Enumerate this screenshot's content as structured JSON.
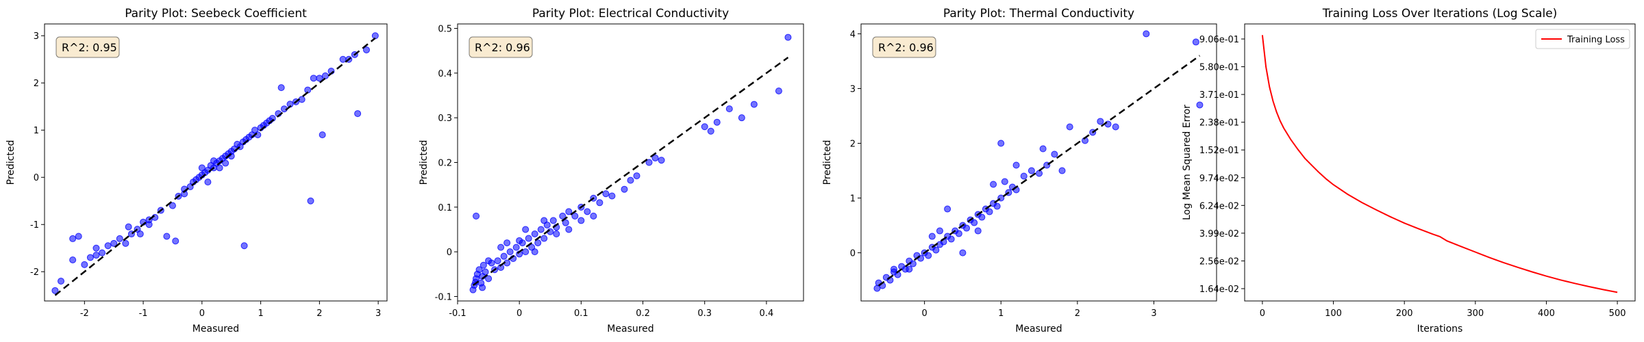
{
  "chart_data": [
    {
      "type": "scatter",
      "title": "Parity Plot: Seebeck Coefficient",
      "xlabel": "Measured",
      "ylabel": "Predicted",
      "annotation": "R^2: 0.95",
      "xlim": [
        -2.68,
        3.15
      ],
      "ylim": [
        -2.62,
        3.25
      ],
      "xticks": [
        -2,
        -1,
        0,
        1,
        2,
        3
      ],
      "yticks": [
        -2,
        -1,
        0,
        1,
        2,
        3
      ],
      "reference_line": [
        -2.5,
        2.95
      ],
      "grid": false,
      "point_color": "#0000ff",
      "line_color": "#000000",
      "series": [
        {
          "values": [
            [
              -2.5,
              -2.4
            ],
            [
              -2.4,
              -2.2
            ],
            [
              -2.2,
              -1.75
            ],
            [
              -2.2,
              -1.3
            ],
            [
              -2.1,
              -1.25
            ],
            [
              -2.0,
              -1.85
            ],
            [
              -1.9,
              -1.7
            ],
            [
              -1.8,
              -1.5
            ],
            [
              -1.8,
              -1.65
            ],
            [
              -1.7,
              -1.6
            ],
            [
              -1.6,
              -1.45
            ],
            [
              -1.5,
              -1.4
            ],
            [
              -1.4,
              -1.3
            ],
            [
              -1.3,
              -1.4
            ],
            [
              -1.25,
              -1.05
            ],
            [
              -1.2,
              -1.2
            ],
            [
              -1.1,
              -1.1
            ],
            [
              -1.05,
              -1.2
            ],
            [
              -1.0,
              -0.95
            ],
            [
              -0.9,
              -0.9
            ],
            [
              -0.8,
              -0.85
            ],
            [
              -0.7,
              -0.7
            ],
            [
              -0.6,
              -1.25
            ],
            [
              -0.5,
              -0.6
            ],
            [
              -0.45,
              -1.35
            ],
            [
              -0.4,
              -0.4
            ],
            [
              -0.3,
              -0.25
            ],
            [
              -0.2,
              -0.2
            ],
            [
              -0.15,
              -0.1
            ],
            [
              -0.1,
              -0.05
            ],
            [
              -0.05,
              0.0
            ],
            [
              0.0,
              0.05
            ],
            [
              0.05,
              0.1
            ],
            [
              0.1,
              0.15
            ],
            [
              0.15,
              0.25
            ],
            [
              0.2,
              0.2
            ],
            [
              0.25,
              0.3
            ],
            [
              0.3,
              0.35
            ],
            [
              0.35,
              0.4
            ],
            [
              0.4,
              0.45
            ],
            [
              0.45,
              0.5
            ],
            [
              0.5,
              0.55
            ],
            [
              0.55,
              0.6
            ],
            [
              0.6,
              0.7
            ],
            [
              0.65,
              0.65
            ],
            [
              0.7,
              0.75
            ],
            [
              0.72,
              -1.45
            ],
            [
              0.75,
              0.8
            ],
            [
              0.8,
              0.85
            ],
            [
              0.85,
              0.9
            ],
            [
              0.9,
              1.0
            ],
            [
              0.95,
              0.9
            ],
            [
              1.0,
              1.05
            ],
            [
              1.05,
              1.1
            ],
            [
              1.1,
              1.15
            ],
            [
              1.2,
              1.25
            ],
            [
              1.3,
              1.35
            ],
            [
              1.35,
              1.9
            ],
            [
              1.4,
              1.45
            ],
            [
              1.5,
              1.55
            ],
            [
              1.6,
              1.6
            ],
            [
              1.7,
              1.65
            ],
            [
              1.8,
              1.85
            ],
            [
              1.85,
              -0.5
            ],
            [
              1.9,
              2.1
            ],
            [
              2.0,
              2.1
            ],
            [
              2.05,
              0.9
            ],
            [
              2.1,
              2.15
            ],
            [
              2.2,
              2.25
            ],
            [
              2.4,
              2.5
            ],
            [
              2.5,
              2.5
            ],
            [
              2.6,
              2.6
            ],
            [
              2.65,
              1.35
            ],
            [
              2.8,
              2.7
            ],
            [
              2.95,
              3.0
            ],
            [
              0.1,
              -0.1
            ],
            [
              0.3,
              0.2
            ],
            [
              -0.3,
              -0.35
            ],
            [
              0.5,
              0.45
            ],
            [
              1.15,
              1.2
            ],
            [
              -0.9,
              -1.0
            ],
            [
              0.0,
              0.2
            ],
            [
              0.2,
              0.35
            ],
            [
              0.4,
              0.3
            ]
          ]
        }
      ]
    },
    {
      "type": "scatter",
      "title": "Parity Plot: Electrical Conductivity",
      "xlabel": "Measured",
      "ylabel": "Predicted",
      "annotation": "R^2: 0.96",
      "xlim": [
        -0.1,
        0.46
      ],
      "ylim": [
        -0.11,
        0.51
      ],
      "xticks": [
        -0.1,
        0.0,
        0.1,
        0.2,
        0.3,
        0.4
      ],
      "yticks": [
        -0.1,
        0.0,
        0.1,
        0.2,
        0.3,
        0.4,
        0.5
      ],
      "reference_line": [
        -0.075,
        0.435
      ],
      "grid": false,
      "point_color": "#0000ff",
      "line_color": "#000000",
      "series": [
        {
          "values": [
            [
              -0.075,
              -0.085
            ],
            [
              -0.073,
              -0.075
            ],
            [
              -0.071,
              -0.068
            ],
            [
              -0.07,
              0.08
            ],
            [
              -0.07,
              -0.06
            ],
            [
              -0.068,
              -0.05
            ],
            [
              -0.065,
              -0.04
            ],
            [
              -0.062,
              -0.07
            ],
            [
              -0.06,
              -0.055
            ],
            [
              -0.058,
              -0.03
            ],
            [
              -0.055,
              -0.045
            ],
            [
              -0.05,
              -0.06
            ],
            [
              -0.045,
              -0.025
            ],
            [
              -0.04,
              -0.04
            ],
            [
              -0.035,
              -0.02
            ],
            [
              -0.03,
              -0.035
            ],
            [
              -0.025,
              -0.01
            ],
            [
              -0.02,
              -0.025
            ],
            [
              -0.015,
              0.0
            ],
            [
              -0.01,
              -0.015
            ],
            [
              -0.005,
              0.01
            ],
            [
              0.0,
              -0.005
            ],
            [
              0.005,
              0.02
            ],
            [
              0.01,
              0.0
            ],
            [
              0.015,
              0.03
            ],
            [
              0.02,
              0.01
            ],
            [
              0.025,
              0.04
            ],
            [
              0.03,
              0.02
            ],
            [
              0.035,
              0.05
            ],
            [
              0.04,
              0.03
            ],
            [
              0.045,
              0.06
            ],
            [
              0.05,
              0.045
            ],
            [
              0.055,
              0.07
            ],
            [
              0.06,
              0.055
            ],
            [
              0.07,
              0.08
            ],
            [
              0.075,
              0.065
            ],
            [
              0.08,
              0.09
            ],
            [
              0.09,
              0.08
            ],
            [
              0.1,
              0.1
            ],
            [
              0.11,
              0.09
            ],
            [
              0.12,
              0.12
            ],
            [
              0.13,
              0.11
            ],
            [
              0.14,
              0.13
            ],
            [
              0.15,
              0.125
            ],
            [
              0.17,
              0.14
            ],
            [
              0.18,
              0.16
            ],
            [
              0.19,
              0.17
            ],
            [
              0.21,
              0.2
            ],
            [
              0.22,
              0.21
            ],
            [
              0.23,
              0.205
            ],
            [
              0.3,
              0.28
            ],
            [
              0.31,
              0.27
            ],
            [
              0.32,
              0.29
            ],
            [
              0.34,
              0.32
            ],
            [
              0.36,
              0.3
            ],
            [
              0.38,
              0.33
            ],
            [
              0.42,
              0.36
            ],
            [
              0.435,
              0.48
            ],
            [
              0.01,
              0.05
            ],
            [
              -0.03,
              0.01
            ],
            [
              0.06,
              0.04
            ],
            [
              -0.05,
              -0.02
            ],
            [
              0.04,
              0.07
            ],
            [
              0.08,
              0.05
            ],
            [
              0.12,
              0.08
            ],
            [
              0.0,
              0.025
            ],
            [
              -0.06,
              -0.08
            ],
            [
              0.025,
              0.0
            ],
            [
              0.1,
              0.07
            ],
            [
              -0.02,
              0.02
            ]
          ]
        }
      ]
    },
    {
      "type": "scatter",
      "title": "Parity Plot: Thermal Conductivity",
      "xlabel": "Measured",
      "ylabel": "Predicted",
      "annotation": "R^2: 0.96",
      "xlim": [
        -0.83,
        3.82
      ],
      "ylim": [
        -0.88,
        4.18
      ],
      "xticks": [
        0,
        1,
        2,
        3
      ],
      "yticks": [
        0,
        1,
        2,
        3,
        4
      ],
      "reference_line": [
        -0.6,
        3.6
      ],
      "grid": false,
      "point_color": "#0000ff",
      "line_color": "#000000",
      "series": [
        {
          "values": [
            [
              -0.62,
              -0.65
            ],
            [
              -0.6,
              -0.55
            ],
            [
              -0.55,
              -0.6
            ],
            [
              -0.5,
              -0.45
            ],
            [
              -0.45,
              -0.5
            ],
            [
              -0.4,
              -0.35
            ],
            [
              -0.35,
              -0.4
            ],
            [
              -0.3,
              -0.25
            ],
            [
              -0.25,
              -0.3
            ],
            [
              -0.2,
              -0.15
            ],
            [
              -0.15,
              -0.2
            ],
            [
              -0.1,
              -0.05
            ],
            [
              -0.05,
              -0.1
            ],
            [
              0.0,
              0.0
            ],
            [
              0.05,
              -0.05
            ],
            [
              0.1,
              0.1
            ],
            [
              0.15,
              0.05
            ],
            [
              0.2,
              0.15
            ],
            [
              0.25,
              0.2
            ],
            [
              0.3,
              0.3
            ],
            [
              0.35,
              0.25
            ],
            [
              0.4,
              0.4
            ],
            [
              0.45,
              0.35
            ],
            [
              0.5,
              0.5
            ],
            [
              0.55,
              0.45
            ],
            [
              0.6,
              0.6
            ],
            [
              0.65,
              0.55
            ],
            [
              0.7,
              0.7
            ],
            [
              0.75,
              0.65
            ],
            [
              0.8,
              0.8
            ],
            [
              0.85,
              0.75
            ],
            [
              0.9,
              0.9
            ],
            [
              0.95,
              0.85
            ],
            [
              1.0,
              1.0
            ],
            [
              1.05,
              1.3
            ],
            [
              1.1,
              1.1
            ],
            [
              1.15,
              1.2
            ],
            [
              1.2,
              1.15
            ],
            [
              1.3,
              1.4
            ],
            [
              1.4,
              1.5
            ],
            [
              1.5,
              1.45
            ],
            [
              1.55,
              1.9
            ],
            [
              1.6,
              1.6
            ],
            [
              1.7,
              1.8
            ],
            [
              1.8,
              1.5
            ],
            [
              1.9,
              2.3
            ],
            [
              2.1,
              2.05
            ],
            [
              2.2,
              2.2
            ],
            [
              2.3,
              2.4
            ],
            [
              2.4,
              2.35
            ],
            [
              2.5,
              2.3
            ],
            [
              2.9,
              4.0
            ],
            [
              3.55,
              3.85
            ],
            [
              3.6,
              2.7
            ],
            [
              0.5,
              0.0
            ],
            [
              1.0,
              2.0
            ],
            [
              0.3,
              0.8
            ],
            [
              0.1,
              0.3
            ],
            [
              0.7,
              0.4
            ],
            [
              -0.2,
              -0.3
            ],
            [
              0.2,
              0.4
            ],
            [
              1.2,
              1.6
            ],
            [
              0.9,
              1.25
            ],
            [
              -0.4,
              -0.3
            ]
          ]
        }
      ]
    },
    {
      "type": "line",
      "title": "Training Loss Over Iterations (Log Scale)",
      "xlabel": "Iterations",
      "ylabel": "Log Mean Squared Error",
      "yscale": "log",
      "xlim": [
        -25,
        525
      ],
      "ylim": [
        0.0138,
        1.08
      ],
      "xticks": [
        0,
        100,
        200,
        300,
        400,
        500
      ],
      "ytick_labels": [
        "9.06e-01",
        "5.80e-01",
        "3.71e-01",
        "2.38e-01",
        "1.52e-01",
        "9.74e-02",
        "6.24e-02",
        "3.99e-02",
        "2.56e-02",
        "1.64e-02"
      ],
      "grid": false,
      "legend_position": "top-right",
      "series": [
        {
          "name": "Training Loss",
          "color": "#ff0000",
          "x": [
            0,
            5,
            10,
            15,
            20,
            25,
            30,
            40,
            50,
            60,
            70,
            80,
            90,
            100,
            120,
            140,
            160,
            180,
            200,
            220,
            240,
            250,
            260,
            280,
            300,
            320,
            340,
            360,
            380,
            400,
            420,
            440,
            460,
            480,
            500
          ],
          "values": [
            0.906,
            0.55,
            0.4,
            0.32,
            0.27,
            0.235,
            0.21,
            0.175,
            0.15,
            0.13,
            0.116,
            0.104,
            0.094,
            0.086,
            0.074,
            0.065,
            0.058,
            0.052,
            0.047,
            0.043,
            0.0395,
            0.038,
            0.0355,
            0.0325,
            0.0298,
            0.0273,
            0.0252,
            0.0234,
            0.0218,
            0.0204,
            0.0192,
            0.0182,
            0.0173,
            0.0165,
            0.0158
          ]
        }
      ]
    }
  ]
}
